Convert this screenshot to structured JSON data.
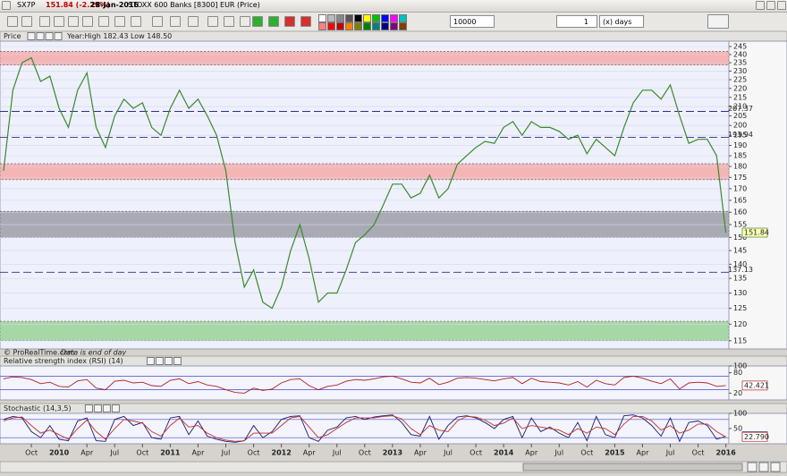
{
  "window": {
    "symbol": "SX7P",
    "change": "151.84 (-2.29%)",
    "date": "28-Jan-2016",
    "instrument": "STOXX 600 Banks [8300] EUR (Price)",
    "units": "10000 units",
    "period_count": "1",
    "period_unit": "(x) days"
  },
  "chart_data": [
    {
      "type": "line",
      "title": "Price",
      "subtitle": "Year:High 182.43 Low 148.50",
      "annotation": "© ProRealTime.com",
      "note": "Data is end of day",
      "log": true,
      "grid": true,
      "xlim": [
        "2009-07",
        "2016-02"
      ],
      "ylim": [
        112.6,
        248.4
      ],
      "yticks": [
        115,
        120,
        125,
        130,
        135,
        140,
        145,
        150,
        155,
        160,
        165,
        170,
        175,
        180,
        185,
        190,
        195,
        200,
        205,
        210,
        215,
        220,
        225,
        230,
        235,
        240,
        245
      ],
      "levels": [
        207.37,
        193.94,
        137.13
      ],
      "zones": [
        {
          "from": 233.6,
          "to": 242,
          "color": "#f5b5b5"
        },
        {
          "from": 174,
          "to": 181.3,
          "color": "#f5b5b5"
        },
        {
          "from": 149.9,
          "to": 160.4,
          "color": "#a9aab4"
        },
        {
          "from": 115.1,
          "to": 120.9,
          "color": "#a6d8a6"
        }
      ],
      "x": [
        "2009-07",
        "2009-08",
        "2009-09",
        "2009-10",
        "2009-11",
        "2009-12",
        "2010-01",
        "2010-02",
        "2010-03",
        "2010-04",
        "2010-05",
        "2010-06",
        "2010-07",
        "2010-08",
        "2010-09",
        "2010-10",
        "2010-11",
        "2010-12",
        "2011-01",
        "2011-02",
        "2011-03",
        "2011-04",
        "2011-05",
        "2011-06",
        "2011-07",
        "2011-08",
        "2011-09",
        "2011-10",
        "2011-11",
        "2011-12",
        "2012-01",
        "2012-02",
        "2012-03",
        "2012-04",
        "2012-05",
        "2012-06",
        "2012-07",
        "2012-08",
        "2012-09",
        "2012-10",
        "2012-11",
        "2012-12",
        "2013-01",
        "2013-02",
        "2013-03",
        "2013-04",
        "2013-05",
        "2013-06",
        "2013-07",
        "2013-08",
        "2013-09",
        "2013-10",
        "2013-11",
        "2013-12",
        "2014-01",
        "2014-02",
        "2014-03",
        "2014-04",
        "2014-05",
        "2014-06",
        "2014-07",
        "2014-08",
        "2014-09",
        "2014-10",
        "2014-11",
        "2014-12",
        "2015-01",
        "2015-02",
        "2015-03",
        "2015-04",
        "2015-05",
        "2015-06",
        "2015-07",
        "2015-08",
        "2015-09",
        "2015-10",
        "2015-11",
        "2015-12",
        "2016-01"
      ],
      "series": [
        {
          "color": "#3a8a2a",
          "values": [
            178,
            219,
            235,
            238,
            224,
            227,
            209,
            199,
            219,
            229,
            199,
            189,
            205,
            214,
            209,
            212,
            199,
            195,
            209,
            219,
            209,
            214,
            205,
            195,
            178,
            148,
            132,
            138,
            127,
            125,
            132,
            145,
            155,
            142,
            127,
            130,
            130,
            138,
            148,
            151,
            155,
            163,
            172,
            172,
            166,
            168,
            176,
            166,
            170,
            181,
            185,
            189,
            192,
            191,
            199,
            202,
            195,
            202,
            199,
            199,
            197,
            193,
            195,
            186,
            193,
            189,
            185,
            199,
            212,
            219,
            219,
            214,
            222,
            205,
            191,
            193,
            193,
            185,
            151.84
          ]
        }
      ]
    },
    {
      "type": "line",
      "title": "Relative strength index (RSI) (14)",
      "xlim": [
        "2009-07",
        "2016-02"
      ],
      "ylim": [
        0,
        100
      ],
      "yticks": [
        20,
        80,
        100
      ],
      "levels": [
        30,
        70
      ],
      "x": [
        "2009-07",
        "2009-08",
        "2009-09",
        "2009-10",
        "2009-11",
        "2009-12",
        "2010-01",
        "2010-02",
        "2010-03",
        "2010-04",
        "2010-05",
        "2010-06",
        "2010-07",
        "2010-08",
        "2010-09",
        "2010-10",
        "2010-11",
        "2010-12",
        "2011-01",
        "2011-02",
        "2011-03",
        "2011-04",
        "2011-05",
        "2011-06",
        "2011-07",
        "2011-08",
        "2011-09",
        "2011-10",
        "2011-11",
        "2011-12",
        "2012-01",
        "2012-02",
        "2012-03",
        "2012-04",
        "2012-05",
        "2012-06",
        "2012-07",
        "2012-08",
        "2012-09",
        "2012-10",
        "2012-11",
        "2012-12",
        "2013-01",
        "2013-02",
        "2013-03",
        "2013-04",
        "2013-05",
        "2013-06",
        "2013-07",
        "2013-08",
        "2013-09",
        "2013-10",
        "2013-11",
        "2013-12",
        "2014-01",
        "2014-02",
        "2014-03",
        "2014-04",
        "2014-05",
        "2014-06",
        "2014-07",
        "2014-08",
        "2014-09",
        "2014-10",
        "2014-11",
        "2014-12",
        "2015-01",
        "2015-02",
        "2015-03",
        "2015-04",
        "2015-05",
        "2015-06",
        "2015-07",
        "2015-08",
        "2015-09",
        "2015-10",
        "2015-11",
        "2015-12",
        "2016-01"
      ],
      "series": [
        {
          "color": "#b02020",
          "values": [
            62,
            68,
            66,
            60,
            48,
            52,
            40,
            38,
            56,
            60,
            35,
            30,
            55,
            58,
            50,
            52,
            42,
            40,
            58,
            62,
            48,
            54,
            44,
            40,
            30,
            22,
            20,
            35,
            28,
            32,
            50,
            60,
            62,
            42,
            30,
            40,
            44,
            55,
            60,
            58,
            62,
            68,
            70,
            62,
            52,
            50,
            64,
            45,
            52,
            64,
            66,
            64,
            60,
            56,
            62,
            66,
            48,
            64,
            54,
            52,
            50,
            44,
            54,
            38,
            58,
            48,
            44,
            66,
            70,
            64,
            55,
            48,
            62,
            32,
            50,
            52,
            50,
            40,
            42.421
          ]
        }
      ]
    },
    {
      "type": "line",
      "title": "Stochastic (14,3,5)",
      "xlim": [
        "2009-07",
        "2016-02"
      ],
      "ylim": [
        0,
        100
      ],
      "yticks": [
        50,
        100
      ],
      "levels": [
        20,
        80
      ],
      "x": [
        "2009-07",
        "2009-08",
        "2009-09",
        "2009-10",
        "2009-11",
        "2009-12",
        "2010-01",
        "2010-02",
        "2010-03",
        "2010-04",
        "2010-05",
        "2010-06",
        "2010-07",
        "2010-08",
        "2010-09",
        "2010-10",
        "2010-11",
        "2010-12",
        "2011-01",
        "2011-02",
        "2011-03",
        "2011-04",
        "2011-05",
        "2011-06",
        "2011-07",
        "2011-08",
        "2011-09",
        "2011-10",
        "2011-11",
        "2011-12",
        "2012-01",
        "2012-02",
        "2012-03",
        "2012-04",
        "2012-05",
        "2012-06",
        "2012-07",
        "2012-08",
        "2012-09",
        "2012-10",
        "2012-11",
        "2012-12",
        "2013-01",
        "2013-02",
        "2013-03",
        "2013-04",
        "2013-05",
        "2013-06",
        "2013-07",
        "2013-08",
        "2013-09",
        "2013-10",
        "2013-11",
        "2013-12",
        "2014-01",
        "2014-02",
        "2014-03",
        "2014-04",
        "2014-05",
        "2014-06",
        "2014-07",
        "2014-08",
        "2014-09",
        "2014-10",
        "2014-11",
        "2014-12",
        "2015-01",
        "2015-02",
        "2015-03",
        "2015-04",
        "2015-05",
        "2015-06",
        "2015-07",
        "2015-08",
        "2015-09",
        "2015-10",
        "2015-11",
        "2015-12",
        "2016-01"
      ],
      "xticks": [
        {
          "value": "2009-10",
          "label": "Oct"
        },
        {
          "value": "2010-01",
          "label": "2010"
        },
        {
          "value": "2010-04",
          "label": "Apr"
        },
        {
          "value": "2010-07",
          "label": "Jul"
        },
        {
          "value": "2010-10",
          "label": "Oct"
        },
        {
          "value": "2011-01",
          "label": "2011"
        },
        {
          "value": "2011-04",
          "label": "Apr"
        },
        {
          "value": "2011-07",
          "label": "Jul"
        },
        {
          "value": "2011-10",
          "label": "Oct"
        },
        {
          "value": "2012-01",
          "label": "2012"
        },
        {
          "value": "2012-04",
          "label": "Apr"
        },
        {
          "value": "2012-07",
          "label": "Jul"
        },
        {
          "value": "2012-10",
          "label": "Oct"
        },
        {
          "value": "2013-01",
          "label": "2013"
        },
        {
          "value": "2013-04",
          "label": "Apr"
        },
        {
          "value": "2013-07",
          "label": "Jul"
        },
        {
          "value": "2013-10",
          "label": "Oct"
        },
        {
          "value": "2014-01",
          "label": "2014"
        },
        {
          "value": "2014-04",
          "label": "Apr"
        },
        {
          "value": "2014-07",
          "label": "Jul"
        },
        {
          "value": "2014-10",
          "label": "Oct"
        },
        {
          "value": "2015-01",
          "label": "2015"
        },
        {
          "value": "2015-04",
          "label": "Apr"
        },
        {
          "value": "2015-07",
          "label": "Jul"
        },
        {
          "value": "2015-10",
          "label": "Oct"
        },
        {
          "value": "2016-01",
          "label": "2016"
        }
      ],
      "series": [
        {
          "color": "#1c1c6a",
          "values": [
            80,
            90,
            85,
            40,
            20,
            60,
            15,
            10,
            75,
            85,
            10,
            8,
            80,
            90,
            60,
            70,
            20,
            15,
            85,
            90,
            30,
            75,
            25,
            15,
            8,
            5,
            10,
            60,
            20,
            40,
            80,
            90,
            92,
            20,
            8,
            45,
            55,
            85,
            90,
            80,
            88,
            92,
            95,
            70,
            30,
            25,
            90,
            15,
            60,
            88,
            92,
            85,
            70,
            50,
            80,
            90,
            20,
            85,
            40,
            55,
            35,
            20,
            70,
            10,
            90,
            30,
            20,
            92,
            95,
            85,
            60,
            25,
            85,
            8,
            70,
            75,
            60,
            15,
            24.505
          ]
        },
        {
          "color": "#c03030",
          "last_label": "22.790",
          "values": [
            75,
            85,
            88,
            60,
            35,
            45,
            30,
            15,
            50,
            78,
            40,
            15,
            50,
            80,
            75,
            68,
            40,
            25,
            60,
            85,
            55,
            60,
            35,
            20,
            12,
            8,
            10,
            35,
            35,
            35,
            60,
            85,
            90,
            55,
            20,
            30,
            50,
            70,
            85,
            85,
            85,
            90,
            92,
            82,
            50,
            30,
            60,
            45,
            40,
            75,
            90,
            88,
            78,
            60,
            68,
            85,
            50,
            60,
            55,
            50,
            45,
            30,
            50,
            35,
            55,
            50,
            30,
            65,
            90,
            90,
            75,
            45,
            60,
            35,
            45,
            65,
            65,
            40,
            22.79
          ]
        }
      ]
    }
  ]
}
